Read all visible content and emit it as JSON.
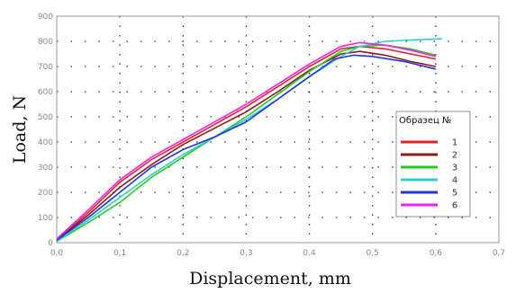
{
  "chart_data": {
    "type": "line",
    "xlabel": "Displacement, mm",
    "ylabel": "Load, N",
    "xlim": [
      0.0,
      0.7
    ],
    "ylim": [
      0,
      900
    ],
    "x_ticks": [
      "0,0",
      "0,1",
      "0,2",
      "0,3",
      "0,4",
      "0,5",
      "0,6",
      "0,7"
    ],
    "y_ticks": [
      "0",
      "100",
      "200",
      "300",
      "400",
      "500",
      "600",
      "700",
      "800",
      "900"
    ],
    "grid": "dotted",
    "legend": {
      "title": "Образец №",
      "placement": "right"
    },
    "series": [
      {
        "name": "1",
        "color": "#e8202a",
        "x": [
          0.0,
          0.05,
          0.1,
          0.15,
          0.2,
          0.25,
          0.3,
          0.35,
          0.4,
          0.45,
          0.48,
          0.52,
          0.56,
          0.6
        ],
        "y": [
          10,
          120,
          240,
          330,
          400,
          470,
          540,
          620,
          700,
          770,
          780,
          770,
          750,
          730
        ]
      },
      {
        "name": "2",
        "color": "#8b1a1a",
        "x": [
          0.0,
          0.05,
          0.1,
          0.15,
          0.2,
          0.25,
          0.3,
          0.35,
          0.4,
          0.45,
          0.48,
          0.52,
          0.56,
          0.6
        ],
        "y": [
          10,
          110,
          220,
          310,
          390,
          455,
          520,
          600,
          685,
          750,
          760,
          745,
          720,
          700
        ]
      },
      {
        "name": "3",
        "color": "#22cc22",
        "x": [
          0.0,
          0.05,
          0.1,
          0.15,
          0.2,
          0.25,
          0.3,
          0.35,
          0.4,
          0.45,
          0.48,
          0.52,
          0.56,
          0.6
        ],
        "y": [
          5,
          80,
          160,
          260,
          340,
          420,
          500,
          590,
          680,
          760,
          780,
          785,
          770,
          745
        ]
      },
      {
        "name": "4",
        "color": "#33cccc",
        "x": [
          0.0,
          0.05,
          0.1,
          0.15,
          0.2,
          0.25,
          0.3,
          0.35,
          0.4,
          0.45,
          0.48,
          0.52,
          0.56,
          0.61
        ],
        "y": [
          5,
          90,
          180,
          270,
          350,
          420,
          490,
          570,
          660,
          740,
          780,
          800,
          805,
          810
        ]
      },
      {
        "name": "5",
        "color": "#2233dd",
        "x": [
          0.0,
          0.05,
          0.1,
          0.15,
          0.2,
          0.25,
          0.3,
          0.35,
          0.4,
          0.44,
          0.47,
          0.5,
          0.55,
          0.6
        ],
        "y": [
          10,
          100,
          200,
          300,
          370,
          420,
          480,
          570,
          660,
          730,
          745,
          740,
          720,
          690
        ]
      },
      {
        "name": "6",
        "color": "#ee22ee",
        "x": [
          0.0,
          0.05,
          0.1,
          0.15,
          0.2,
          0.25,
          0.3,
          0.35,
          0.4,
          0.45,
          0.48,
          0.52,
          0.56,
          0.6
        ],
        "y": [
          15,
          130,
          250,
          340,
          410,
          480,
          550,
          630,
          710,
          780,
          795,
          785,
          765,
          740
        ]
      }
    ]
  }
}
